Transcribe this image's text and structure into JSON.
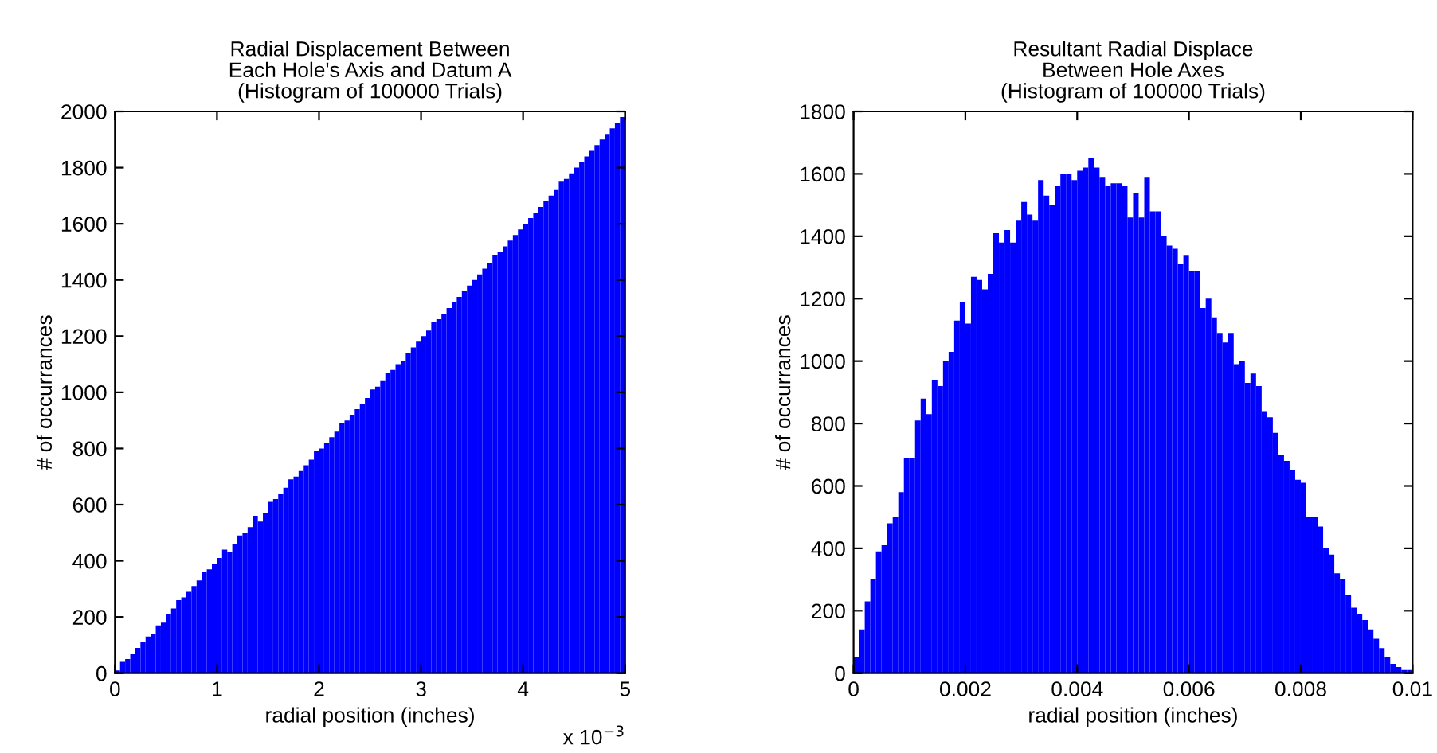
{
  "chart_data": [
    {
      "type": "histogram",
      "title": "Radial Displacement Between\nEach Hole's Axis and Datum A\n(Histogram of 100000 Trials)",
      "xlabel": "radial position (inches)",
      "ylabel": "# of occurrances",
      "color": "#0000ff",
      "bins": [
        0,
        0.05,
        0.1,
        0.15,
        0.2,
        0.25,
        0.3,
        0.35,
        0.4,
        0.45,
        0.5,
        0.55,
        0.6,
        0.65,
        0.7,
        0.75,
        0.8,
        0.85,
        0.9,
        0.95,
        1,
        1.05,
        1.1,
        1.15,
        1.2,
        1.25,
        1.3,
        1.35,
        1.4,
        1.45,
        1.5,
        1.55,
        1.6,
        1.65,
        1.7,
        1.75,
        1.8,
        1.85,
        1.9,
        1.95,
        2,
        2.05,
        2.1,
        2.15,
        2.2,
        2.25,
        2.3,
        2.35,
        2.4,
        2.45,
        2.5,
        2.55,
        2.6,
        2.65,
        2.7,
        2.75,
        2.8,
        2.85,
        2.9,
        2.95,
        3,
        3.05,
        3.1,
        3.15,
        3.2,
        3.25,
        3.3,
        3.35,
        3.4,
        3.45,
        3.5,
        3.55,
        3.6,
        3.65,
        3.7,
        3.75,
        3.8,
        3.85,
        3.9,
        3.95,
        4,
        4.05,
        4.1,
        4.15,
        4.2,
        4.25,
        4.3,
        4.35,
        4.4,
        4.45,
        4.5,
        4.55,
        4.6,
        4.65,
        4.7,
        4.75,
        4.8,
        4.85,
        4.9,
        4.95,
        5
      ],
      "values": [
        10,
        40,
        50,
        70,
        90,
        110,
        130,
        140,
        170,
        180,
        210,
        230,
        260,
        270,
        290,
        310,
        330,
        360,
        370,
        390,
        410,
        440,
        430,
        460,
        490,
        500,
        520,
        560,
        540,
        570,
        610,
        620,
        640,
        660,
        690,
        700,
        720,
        740,
        760,
        790,
        800,
        820,
        840,
        860,
        890,
        900,
        920,
        940,
        960,
        980,
        1010,
        1020,
        1040,
        1070,
        1080,
        1100,
        1110,
        1140,
        1160,
        1180,
        1200,
        1220,
        1250,
        1260,
        1280,
        1300,
        1320,
        1340,
        1360,
        1380,
        1400,
        1420,
        1440,
        1460,
        1490,
        1500,
        1520,
        1540,
        1560,
        1580,
        1600,
        1620,
        1640,
        1660,
        1680,
        1700,
        1720,
        1750,
        1760,
        1780,
        1800,
        1820,
        1840,
        1860,
        1880,
        1900,
        1920,
        1940,
        1960,
        1980
      ],
      "xlim": [
        0,
        5
      ],
      "xticks": [
        0,
        1,
        2,
        3,
        4,
        5
      ],
      "ylim": [
        0,
        2000
      ],
      "yticks": [
        0,
        200,
        400,
        600,
        800,
        1000,
        1200,
        1400,
        1600,
        1800,
        2000
      ],
      "annotations": [
        "x 10$^{−3}$"
      ]
    },
    {
      "type": "histogram",
      "title": "Resultant Radial Displace\nBetween Hole Axes\n(Histogram of 100000 Trials)",
      "xlabel": "radial position (inches)",
      "ylabel": "# of occurrances",
      "color": "#0000ff",
      "bins": [
        0,
        0.0001,
        0.0002,
        0.0003,
        0.0004,
        0.0005,
        0.0006,
        0.0007,
        0.0008,
        0.0009,
        0.001,
        0.0011,
        0.0012,
        0.0013,
        0.0014,
        0.0015,
        0.0016,
        0.0017,
        0.0018,
        0.0019,
        0.002,
        0.0021,
        0.0022,
        0.0023,
        0.0024,
        0.0025,
        0.0026,
        0.0027,
        0.0028,
        0.0029,
        0.003,
        0.0031,
        0.0032,
        0.0033,
        0.0034,
        0.0035,
        0.0036,
        0.0037,
        0.0038,
        0.0039,
        0.004,
        0.0041,
        0.0042,
        0.0043,
        0.0044,
        0.0045,
        0.0046,
        0.0047,
        0.0048,
        0.0049,
        0.005,
        0.0051,
        0.0052,
        0.0053,
        0.0054,
        0.0055,
        0.0056,
        0.0057,
        0.0058,
        0.0059,
        0.006,
        0.0061,
        0.0062,
        0.0063,
        0.0064,
        0.0065,
        0.0066,
        0.0067,
        0.0068,
        0.0069,
        0.007,
        0.0071,
        0.0072,
        0.0073,
        0.0074,
        0.0075,
        0.0076,
        0.0077,
        0.0078,
        0.0079,
        0.008,
        0.0081,
        0.0082,
        0.0083,
        0.0084,
        0.0085,
        0.0086,
        0.0087,
        0.0088,
        0.0089,
        0.009,
        0.0091,
        0.0092,
        0.0093,
        0.0094,
        0.0095,
        0.0096,
        0.0097,
        0.0098,
        0.0099,
        0.01
      ],
      "values": [
        50,
        140,
        230,
        300,
        390,
        410,
        480,
        500,
        580,
        690,
        690,
        810,
        880,
        830,
        940,
        920,
        1000,
        1030,
        1130,
        1190,
        1120,
        1270,
        1260,
        1230,
        1280,
        1410,
        1380,
        1420,
        1380,
        1450,
        1510,
        1470,
        1450,
        1580,
        1530,
        1500,
        1560,
        1600,
        1600,
        1580,
        1610,
        1620,
        1650,
        1620,
        1590,
        1560,
        1570,
        1570,
        1560,
        1460,
        1540,
        1460,
        1590,
        1480,
        1480,
        1400,
        1370,
        1360,
        1310,
        1340,
        1290,
        1290,
        1170,
        1200,
        1140,
        1090,
        1060,
        1090,
        990,
        1000,
        930,
        960,
        920,
        840,
        820,
        770,
        700,
        680,
        650,
        620,
        610,
        500,
        500,
        470,
        400,
        380,
        320,
        300,
        250,
        210,
        190,
        170,
        140,
        110,
        80,
        50,
        30,
        20,
        10,
        10
      ],
      "xlim": [
        0,
        0.01
      ],
      "xticks": [
        0,
        0.002,
        0.004,
        0.006,
        0.008,
        0.01
      ],
      "ylim": [
        0,
        1800
      ],
      "yticks": [
        0,
        200,
        400,
        600,
        800,
        1000,
        1200,
        1400,
        1600,
        1800
      ]
    }
  ]
}
